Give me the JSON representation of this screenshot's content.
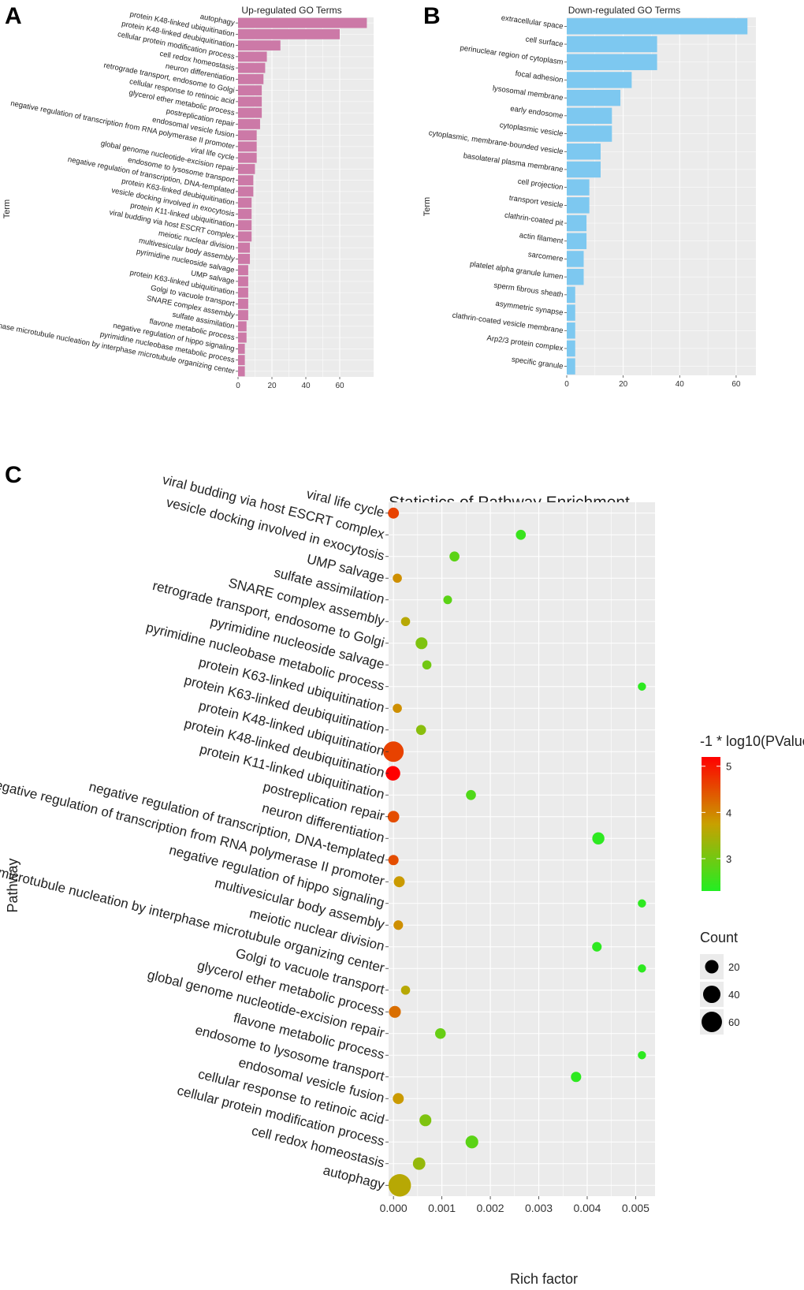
{
  "panel_labels": {
    "a": "A",
    "b": "B",
    "c": "C"
  },
  "colors": {
    "panel_bg": "#EBEBEB",
    "grid": "#FFFFFF",
    "up_bar": "#CC79A7",
    "down_bar": "#7DC8F0",
    "gradient_high": "#FF0000",
    "gradient_mid": "#C8A000",
    "gradient_low": "#22EE22"
  },
  "chart_data": [
    {
      "type": "bar",
      "orientation": "horizontal",
      "title": "Up-regulated GO Terms",
      "xlabel": "",
      "ylabel": "Term",
      "xlim": [
        0,
        80
      ],
      "xticks": [
        0,
        20,
        40,
        60
      ],
      "xtick_labels": [
        "0",
        "20",
        "40",
        "60"
      ],
      "categories": [
        "autophagy",
        "protein K48-linked ubiquitination",
        "protein K48-linked deubiquitination",
        "cellular protein modification process",
        "cell redox homeostasis",
        "neuron differentiation",
        "retrograde transport, endosome to Golgi",
        "cellular response to retinoic acid",
        "glycerol ether metabolic process",
        "postreplication repair",
        "endosomal vesicle fusion",
        "negative regulation of transcription from RNA polymerase II promoter",
        "viral life cycle",
        "global genome nucleotide-excision repair",
        "endosome to lysosome transport",
        "negative regulation of transcription, DNA-templated",
        "protein K63-linked deubiquitination",
        "vesicle docking involved in exocytosis",
        "protein K11-linked ubiquitination",
        "viral budding via host ESCRT complex",
        "meiotic nuclear division",
        "multivesicular body assembly",
        "pyrimidine nucleoside salvage",
        "UMP salvage",
        "protein K63-linked ubiquitination",
        "Golgi to vacuole transport",
        "SNARE complex assembly",
        "sulfate assimilation",
        "flavone metabolic process",
        "negative regulation of hippo signaling",
        "pyrimidine nucleobase metabolic process",
        "interphase microtubule nucleation by interphase microtubule organizing center"
      ],
      "values": [
        76,
        60,
        25,
        17,
        16,
        15,
        14,
        14,
        14,
        13,
        11,
        11,
        11,
        10,
        9,
        9,
        8,
        8,
        8,
        8,
        7,
        7,
        6,
        6,
        6,
        6,
        6,
        5,
        5,
        4,
        4,
        4
      ]
    },
    {
      "type": "bar",
      "orientation": "horizontal",
      "title": "Down-regulated GO Terms",
      "xlabel": "",
      "ylabel": "Term",
      "xlim": [
        0,
        67
      ],
      "xticks": [
        0,
        20,
        40,
        60
      ],
      "xtick_labels": [
        "0",
        "20",
        "40",
        "60"
      ],
      "categories": [
        "extracellular space",
        "cell surface",
        "perinuclear region of cytoplasm",
        "focal adhesion",
        "lysosomal membrane",
        "early endosome",
        "cytoplasmic vesicle",
        "cytoplasmic, membrane-bounded vesicle",
        "basolateral plasma membrane",
        "cell projection",
        "transport vesicle",
        "clathrin-coated pit",
        "actin filament",
        "sarcomere",
        "platelet alpha granule lumen",
        "sperm fibrous sheath",
        "asymmetric synapse",
        "clathrin-coated vesicle membrane",
        "Arp2/3 protein complex",
        "specific granule"
      ],
      "values": [
        64,
        32,
        32,
        23,
        19,
        16,
        16,
        12,
        12,
        8,
        8,
        7,
        7,
        6,
        6,
        3,
        3,
        3,
        3,
        3
      ]
    },
    {
      "type": "scatter",
      "title": "Statistics of Pathway Enrichment",
      "xlabel": "Rich factor",
      "ylabel": "Pathway",
      "xlim": [
        -0.0001,
        0.0054
      ],
      "xticks": [
        0,
        0.001,
        0.002,
        0.003,
        0.004,
        0.005
      ],
      "xtick_labels": [
        "0.000",
        "0.001",
        "0.002",
        "0.003",
        "0.004",
        "0.005"
      ],
      "color_legend_title": "-1 * log10(PValue)",
      "color_range": [
        2.3,
        5.2
      ],
      "color_ticks": [
        5,
        4,
        3
      ],
      "color_tick_labels": [
        "5",
        "4",
        "3"
      ],
      "size_legend_title": "Count",
      "size_range": [
        4,
        76
      ],
      "size_ticks": [
        20,
        40,
        60
      ],
      "size_tick_labels": [
        "20",
        "40",
        "60"
      ],
      "points": [
        {
          "pathway": "viral life cycle",
          "rich_factor": 0.0,
          "neg_log10_p": 4.6,
          "count": 11
        },
        {
          "pathway": "viral budding via host ESCRT complex",
          "rich_factor": 0.00263,
          "neg_log10_p": 2.5,
          "count": 8
        },
        {
          "pathway": "vesicle docking involved in exocytosis",
          "rich_factor": 0.00126,
          "neg_log10_p": 2.8,
          "count": 8
        },
        {
          "pathway": "UMP salvage",
          "rich_factor": 8e-05,
          "neg_log10_p": 3.9,
          "count": 6
        },
        {
          "pathway": "sulfate assimilation",
          "rich_factor": 0.00112,
          "neg_log10_p": 2.8,
          "count": 5
        },
        {
          "pathway": "SNARE complex assembly",
          "rich_factor": 0.00025,
          "neg_log10_p": 3.6,
          "count": 6
        },
        {
          "pathway": "retrograde transport, endosome to Golgi",
          "rich_factor": 0.00058,
          "neg_log10_p": 3.1,
          "count": 14
        },
        {
          "pathway": "pyrimidine nucleoside salvage",
          "rich_factor": 0.00069,
          "neg_log10_p": 3.0,
          "count": 6
        },
        {
          "pathway": "pyrimidine nucleobase metabolic process",
          "rich_factor": 0.00513,
          "neg_log10_p": 2.4,
          "count": 4
        },
        {
          "pathway": "protein K63-linked ubiquitination",
          "rich_factor": 8e-05,
          "neg_log10_p": 3.9,
          "count": 6
        },
        {
          "pathway": "protein K63-linked deubiquitination",
          "rich_factor": 0.00057,
          "neg_log10_p": 3.2,
          "count": 8
        },
        {
          "pathway": "protein K48-linked ubiquitination",
          "rich_factor": 0.0,
          "neg_log10_p": 4.6,
          "count": 60
        },
        {
          "pathway": "protein K48-linked deubiquitination",
          "rich_factor": -1e-05,
          "neg_log10_p": 5.2,
          "count": 25
        },
        {
          "pathway": "protein K11-linked ubiquitination",
          "rich_factor": 0.0016,
          "neg_log10_p": 2.7,
          "count": 8
        },
        {
          "pathway": "postreplication repair",
          "rich_factor": 0.0,
          "neg_log10_p": 4.5,
          "count": 13
        },
        {
          "pathway": "neuron differentiation",
          "rich_factor": 0.00423,
          "neg_log10_p": 2.4,
          "count": 15
        },
        {
          "pathway": "negative regulation of transcription, DNA-templated",
          "rich_factor": 0.0,
          "neg_log10_p": 4.5,
          "count": 9
        },
        {
          "pathway": "negative regulation of transcription from RNA polymerase II promoter",
          "rich_factor": 0.00012,
          "neg_log10_p": 3.8,
          "count": 11
        },
        {
          "pathway": "negative regulation of hippo signaling",
          "rich_factor": 0.00513,
          "neg_log10_p": 2.4,
          "count": 4
        },
        {
          "pathway": "multivesicular body assembly",
          "rich_factor": 0.0001,
          "neg_log10_p": 3.9,
          "count": 7
        },
        {
          "pathway": "meiotic nuclear division",
          "rich_factor": 0.0042,
          "neg_log10_p": 2.4,
          "count": 7
        },
        {
          "pathway": "interphase microtubule nucleation by interphase microtubule organizing center",
          "rich_factor": 0.00513,
          "neg_log10_p": 2.4,
          "count": 4
        },
        {
          "pathway": "Golgi to vacuole transport",
          "rich_factor": 0.00025,
          "neg_log10_p": 3.6,
          "count": 6
        },
        {
          "pathway": "glycerol ether metabolic process",
          "rich_factor": 3e-05,
          "neg_log10_p": 4.2,
          "count": 14
        },
        {
          "pathway": "global genome nucleotide-excision repair",
          "rich_factor": 0.00097,
          "neg_log10_p": 2.9,
          "count": 10
        },
        {
          "pathway": "flavone metabolic process",
          "rich_factor": 0.00513,
          "neg_log10_p": 2.4,
          "count": 4
        },
        {
          "pathway": "endosome to lysosome transport",
          "rich_factor": 0.00377,
          "neg_log10_p": 2.4,
          "count": 9
        },
        {
          "pathway": "endosomal vesicle fusion",
          "rich_factor": 0.0001,
          "neg_log10_p": 3.8,
          "count": 11
        },
        {
          "pathway": "cellular response to retinoic acid",
          "rich_factor": 0.00066,
          "neg_log10_p": 3.1,
          "count": 14
        },
        {
          "pathway": "cellular protein modification process",
          "rich_factor": 0.00162,
          "neg_log10_p": 2.8,
          "count": 17
        },
        {
          "pathway": "cell redox homeostasis",
          "rich_factor": 0.00053,
          "neg_log10_p": 3.3,
          "count": 16
        },
        {
          "pathway": "autophagy",
          "rich_factor": 0.00013,
          "neg_log10_p": 3.6,
          "count": 76
        }
      ]
    }
  ]
}
